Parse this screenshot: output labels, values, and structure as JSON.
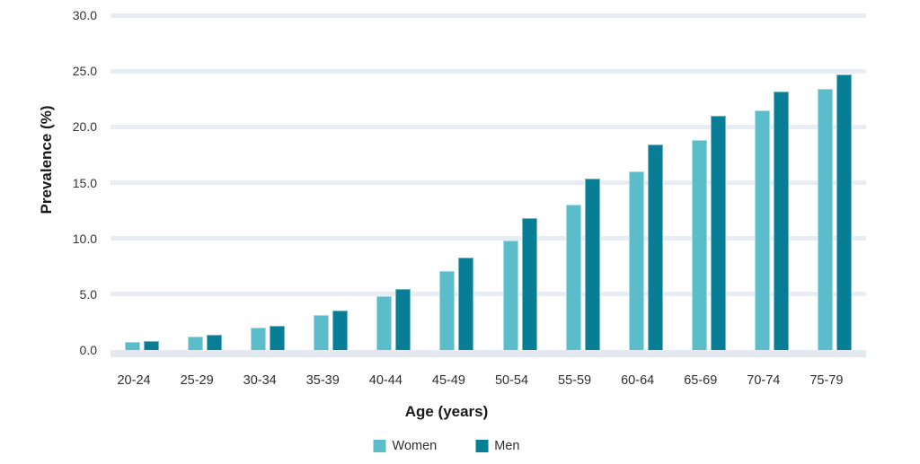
{
  "chart_data": {
    "type": "bar",
    "title": "",
    "xlabel": "Age (years)",
    "ylabel": "Prevalence (%)",
    "categories": [
      "20-24",
      "25-29",
      "30-34",
      "35-39",
      "40-44",
      "45-49",
      "50-54",
      "55-59",
      "60-64",
      "65-69",
      "70-74",
      "75-79"
    ],
    "series": [
      {
        "name": "Women",
        "color": "#5bbdca",
        "values": [
          0.7,
          1.2,
          2.0,
          3.1,
          4.8,
          7.1,
          9.8,
          13.0,
          16.0,
          18.8,
          21.5,
          23.4
        ]
      },
      {
        "name": "Men",
        "color": "#077e95",
        "values": [
          0.8,
          1.4,
          2.2,
          3.5,
          5.5,
          8.3,
          11.8,
          15.4,
          18.4,
          21.0,
          23.2,
          24.7
        ]
      }
    ],
    "ylim": [
      0,
      30
    ],
    "yticks": [
      0,
      5,
      10,
      15,
      20,
      25,
      30
    ],
    "ytick_labels": [
      "0.0",
      "5.0",
      "10.0",
      "15.0",
      "20.0",
      "25.0",
      "30.0"
    ],
    "grid": true,
    "legend_position": "bottom"
  },
  "colors": {
    "gridline": "#e7edf4",
    "baseline": "#e3e9ee",
    "tick_text": "#333333",
    "title_text": "#1a1a1a",
    "background": "#ffffff"
  }
}
